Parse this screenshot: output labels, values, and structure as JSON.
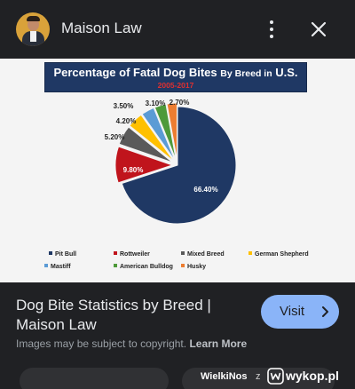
{
  "header": {
    "site_name": "Maison Law",
    "avatar_icon": "person-avatar",
    "more_icon": "more-vert-icon",
    "close_icon": "close-icon"
  },
  "image": {
    "lens_icon": "lens-icon"
  },
  "chart_data": {
    "type": "pie",
    "title": "Percentage of Fatal Dog Bites",
    "title_small": "By Breed in",
    "title_end": "U.S.",
    "subtitle": "2005-2017",
    "slices": [
      {
        "name": "Pit Bull",
        "value": 66.4,
        "label": "66.40%",
        "color": "#1f3864"
      },
      {
        "name": "Rottweiler",
        "value": 9.8,
        "label": "9.80%",
        "color": "#c0141c"
      },
      {
        "name": "Mixed Breed",
        "value": 5.2,
        "label": "5.20%",
        "color": "#5a5a5a"
      },
      {
        "name": "German Shepherd",
        "value": 4.2,
        "label": "4.20%",
        "color": "#ffc000"
      },
      {
        "name": "Mastiff",
        "value": 3.5,
        "label": "3.50%",
        "color": "#5b9bd5"
      },
      {
        "name": "American Bulldog",
        "value": 3.1,
        "label": "3.10%",
        "color": "#4e9a3a"
      },
      {
        "name": "Husky",
        "value": 2.7,
        "label": "2.70%",
        "color": "#ed7d31"
      }
    ]
  },
  "result": {
    "title": "Dog Bite Statistics by Breed | Maison Law",
    "visit_label": "Visit",
    "copyright_text": "Images may be subject to copyright.",
    "learn_more": "Learn More"
  },
  "watermark": {
    "user": "WielkiNos",
    "sep": "z",
    "site": "wykop.pl"
  }
}
